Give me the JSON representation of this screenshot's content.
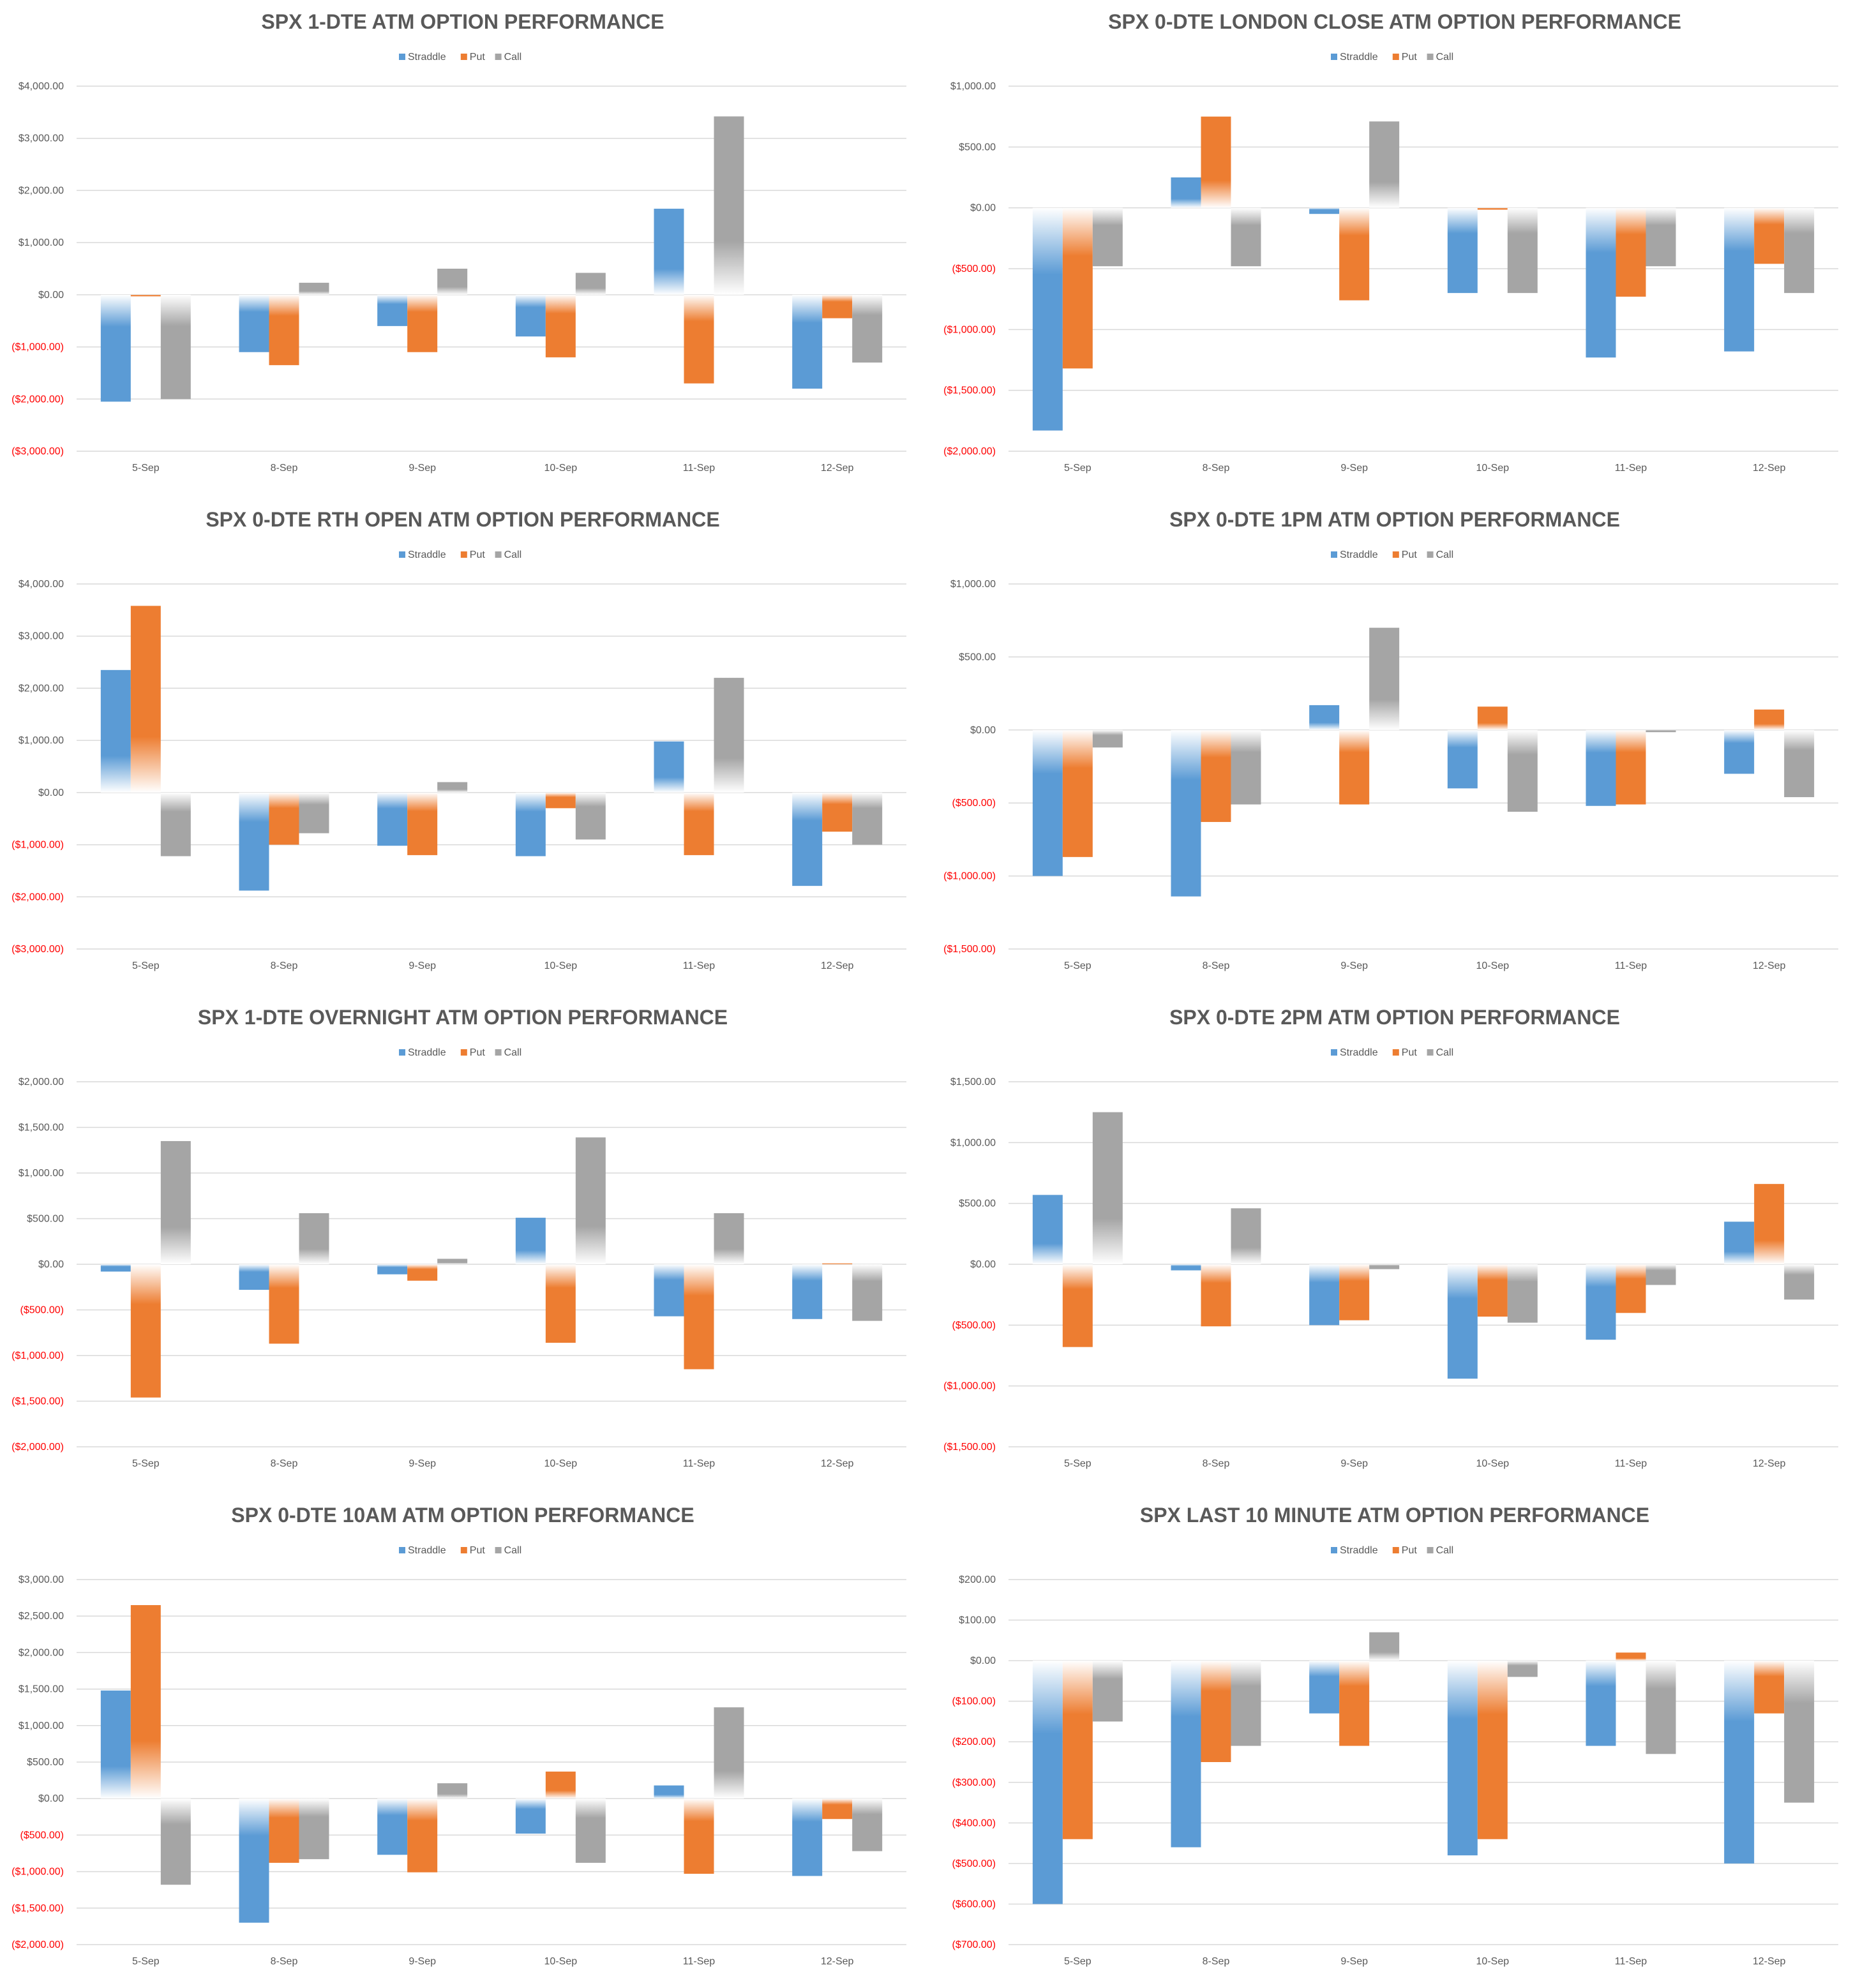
{
  "colors": {
    "straddle": "#5b9bd5",
    "put": "#ed7d31",
    "call": "#a5a5a5",
    "grid": "#d9d9d9",
    "negative_tick": "#ff0000",
    "text": "#595959"
  },
  "legend": [
    "Straddle",
    "Put",
    "Call"
  ],
  "chart_data": [
    {
      "id": "c1",
      "type": "bar",
      "title": "SPX 1-DTE ATM OPTION PERFORMANCE",
      "categories": [
        "5-Sep",
        "8-Sep",
        "9-Sep",
        "10-Sep",
        "11-Sep",
        "12-Sep"
      ],
      "series": [
        {
          "name": "Straddle",
          "values": [
            -2050,
            -1100,
            -600,
            -800,
            1650,
            -1800
          ]
        },
        {
          "name": "Put",
          "values": [
            -30,
            -1350,
            -1100,
            -1200,
            -1700,
            -450
          ]
        },
        {
          "name": "Call",
          "values": [
            -2000,
            230,
            500,
            420,
            3420,
            -1300
          ]
        }
      ],
      "yticks": [
        4000,
        3000,
        2000,
        1000,
        0,
        -1000,
        -2000,
        -3000
      ],
      "ytick_labels": [
        "$4,000.00",
        "$3,000.00",
        "$2,000.00",
        "$1,000.00",
        "$0.00",
        "($1,000.00)",
        "($2,000.00)",
        "($3,000.00)"
      ],
      "ylim": [
        -3000,
        4000
      ]
    },
    {
      "id": "c2",
      "type": "bar",
      "title": "SPX 0-DTE  LONDON CLOSE ATM OPTION PERFORMANCE",
      "categories": [
        "5-Sep",
        "8-Sep",
        "9-Sep",
        "10-Sep",
        "11-Sep",
        "12-Sep"
      ],
      "series": [
        {
          "name": "Straddle",
          "values": [
            -1830,
            250,
            -50,
            -700,
            -1230,
            -1180
          ]
        },
        {
          "name": "Put",
          "values": [
            -1320,
            750,
            -760,
            -15,
            -730,
            -460
          ]
        },
        {
          "name": "Call",
          "values": [
            -480,
            -480,
            710,
            -700,
            -480,
            -700
          ]
        }
      ],
      "yticks": [
        1000,
        500,
        0,
        -500,
        -1000,
        -1500,
        -2000
      ],
      "ytick_labels": [
        "$1,000.00",
        "$500.00",
        "$0.00",
        "($500.00)",
        "($1,000.00)",
        "($1,500.00)",
        "($2,000.00)"
      ],
      "ylim": [
        -2000,
        1000
      ]
    },
    {
      "id": "c3",
      "type": "bar",
      "title": "SPX 0-DTE RTH OPEN ATM OPTION PERFORMANCE",
      "categories": [
        "5-Sep",
        "8-Sep",
        "9-Sep",
        "10-Sep",
        "11-Sep",
        "12-Sep"
      ],
      "series": [
        {
          "name": "Straddle",
          "values": [
            2350,
            -1880,
            -1020,
            -1220,
            980,
            -1790
          ]
        },
        {
          "name": "Put",
          "values": [
            3580,
            -1000,
            -1200,
            -300,
            -1200,
            -750
          ]
        },
        {
          "name": "Call",
          "values": [
            -1220,
            -780,
            200,
            -900,
            2200,
            -1000
          ]
        }
      ],
      "yticks": [
        4000,
        3000,
        2000,
        1000,
        0,
        -1000,
        -2000,
        -3000
      ],
      "ytick_labels": [
        "$4,000.00",
        "$3,000.00",
        "$2,000.00",
        "$1,000.00",
        "$0.00",
        "($1,000.00)",
        "($2,000.00)",
        "($3,000.00)"
      ],
      "ylim": [
        -3000,
        4000
      ]
    },
    {
      "id": "c4",
      "type": "bar",
      "title": "SPX 0-DTE 1PM ATM OPTION PERFORMANCE",
      "categories": [
        "5-Sep",
        "8-Sep",
        "9-Sep",
        "10-Sep",
        "11-Sep",
        "12-Sep"
      ],
      "series": [
        {
          "name": "Straddle",
          "values": [
            -1000,
            -1140,
            170,
            -400,
            -520,
            -300
          ]
        },
        {
          "name": "Put",
          "values": [
            -870,
            -630,
            -510,
            160,
            -510,
            140
          ]
        },
        {
          "name": "Call",
          "values": [
            -120,
            -510,
            700,
            -560,
            -15,
            -460
          ]
        }
      ],
      "yticks": [
        1000,
        500,
        0,
        -500,
        -1000,
        -1500
      ],
      "ytick_labels": [
        "$1,000.00",
        "$500.00",
        "$0.00",
        "($500.00)",
        "($1,000.00)",
        "($1,500.00)"
      ],
      "ylim": [
        -1500,
        1000
      ]
    },
    {
      "id": "c5",
      "type": "bar",
      "title": "SPX 1-DTE OVERNIGHT ATM OPTION PERFORMANCE",
      "categories": [
        "5-Sep",
        "8-Sep",
        "9-Sep",
        "10-Sep",
        "11-Sep",
        "12-Sep"
      ],
      "series": [
        {
          "name": "Straddle",
          "values": [
            -80,
            -280,
            -110,
            510,
            -570,
            -600
          ]
        },
        {
          "name": "Put",
          "values": [
            -1460,
            -870,
            -180,
            -860,
            -1150,
            10
          ]
        },
        {
          "name": "Call",
          "values": [
            1350,
            560,
            60,
            1390,
            560,
            -620
          ]
        }
      ],
      "yticks": [
        2000,
        1500,
        1000,
        500,
        0,
        -500,
        -1000,
        -1500,
        -2000
      ],
      "ytick_labels": [
        "$2,000.00",
        "$1,500.00",
        "$1,000.00",
        "$500.00",
        "$0.00",
        "($500.00)",
        "($1,000.00)",
        "($1,500.00)",
        "($2,000.00)"
      ],
      "ylim": [
        -2000,
        2000
      ]
    },
    {
      "id": "c6",
      "type": "bar",
      "title": "SPX 0-DTE 2PM ATM OPTION PERFORMANCE",
      "categories": [
        "5-Sep",
        "8-Sep",
        "9-Sep",
        "10-Sep",
        "11-Sep",
        "12-Sep"
      ],
      "series": [
        {
          "name": "Straddle",
          "values": [
            570,
            -50,
            -500,
            -940,
            -620,
            350
          ]
        },
        {
          "name": "Put",
          "values": [
            -680,
            -510,
            -460,
            -430,
            -400,
            660
          ]
        },
        {
          "name": "Call",
          "values": [
            1250,
            460,
            -40,
            -480,
            -170,
            -290
          ]
        }
      ],
      "yticks": [
        1500,
        1000,
        500,
        0,
        -500,
        -1000,
        -1500
      ],
      "ytick_labels": [
        "$1,500.00",
        "$1,000.00",
        "$500.00",
        "$0.00",
        "($500.00)",
        "($1,000.00)",
        "($1,500.00)"
      ],
      "ylim": [
        -1500,
        1500
      ]
    },
    {
      "id": "c7",
      "type": "bar",
      "title": "SPX 0-DTE 10AM ATM OPTION PERFORMANCE",
      "categories": [
        "5-Sep",
        "8-Sep",
        "9-Sep",
        "10-Sep",
        "11-Sep",
        "12-Sep"
      ],
      "series": [
        {
          "name": "Straddle",
          "values": [
            1480,
            -1700,
            -770,
            -480,
            180,
            -1060
          ]
        },
        {
          "name": "Put",
          "values": [
            2650,
            -880,
            -1010,
            370,
            -1030,
            -280
          ]
        },
        {
          "name": "Call",
          "values": [
            -1180,
            -830,
            210,
            -880,
            1250,
            -720
          ]
        }
      ],
      "yticks": [
        3000,
        2500,
        2000,
        1500,
        1000,
        500,
        0,
        -500,
        -1000,
        -1500,
        -2000
      ],
      "ytick_labels": [
        "$3,000.00",
        "$2,500.00",
        "$2,000.00",
        "$1,500.00",
        "$1,000.00",
        "$500.00",
        "$0.00",
        "($500.00)",
        "($1,000.00)",
        "($1,500.00)",
        "($2,000.00)"
      ],
      "ylim": [
        -2000,
        3000
      ]
    },
    {
      "id": "c8",
      "type": "bar",
      "title": "SPX LAST 10 MINUTE ATM OPTION PERFORMANCE",
      "categories": [
        "5-Sep",
        "8-Sep",
        "9-Sep",
        "10-Sep",
        "11-Sep",
        "12-Sep"
      ],
      "series": [
        {
          "name": "Straddle",
          "values": [
            -600,
            -460,
            -130,
            -480,
            -210,
            -500
          ]
        },
        {
          "name": "Put",
          "values": [
            -440,
            -250,
            -210,
            -440,
            20,
            -130
          ]
        },
        {
          "name": "Call",
          "values": [
            -150,
            -210,
            70,
            -40,
            -230,
            -350
          ]
        }
      ],
      "yticks": [
        200,
        100,
        0,
        -100,
        -200,
        -300,
        -400,
        -500,
        -600,
        -700
      ],
      "ytick_labels": [
        "$200.00",
        "$100.00",
        "$0.00",
        "($100.00)",
        "($200.00)",
        "($300.00)",
        "($400.00)",
        "($500.00)",
        "($600.00)",
        "($700.00)"
      ],
      "ylim": [
        -700,
        200
      ]
    }
  ]
}
